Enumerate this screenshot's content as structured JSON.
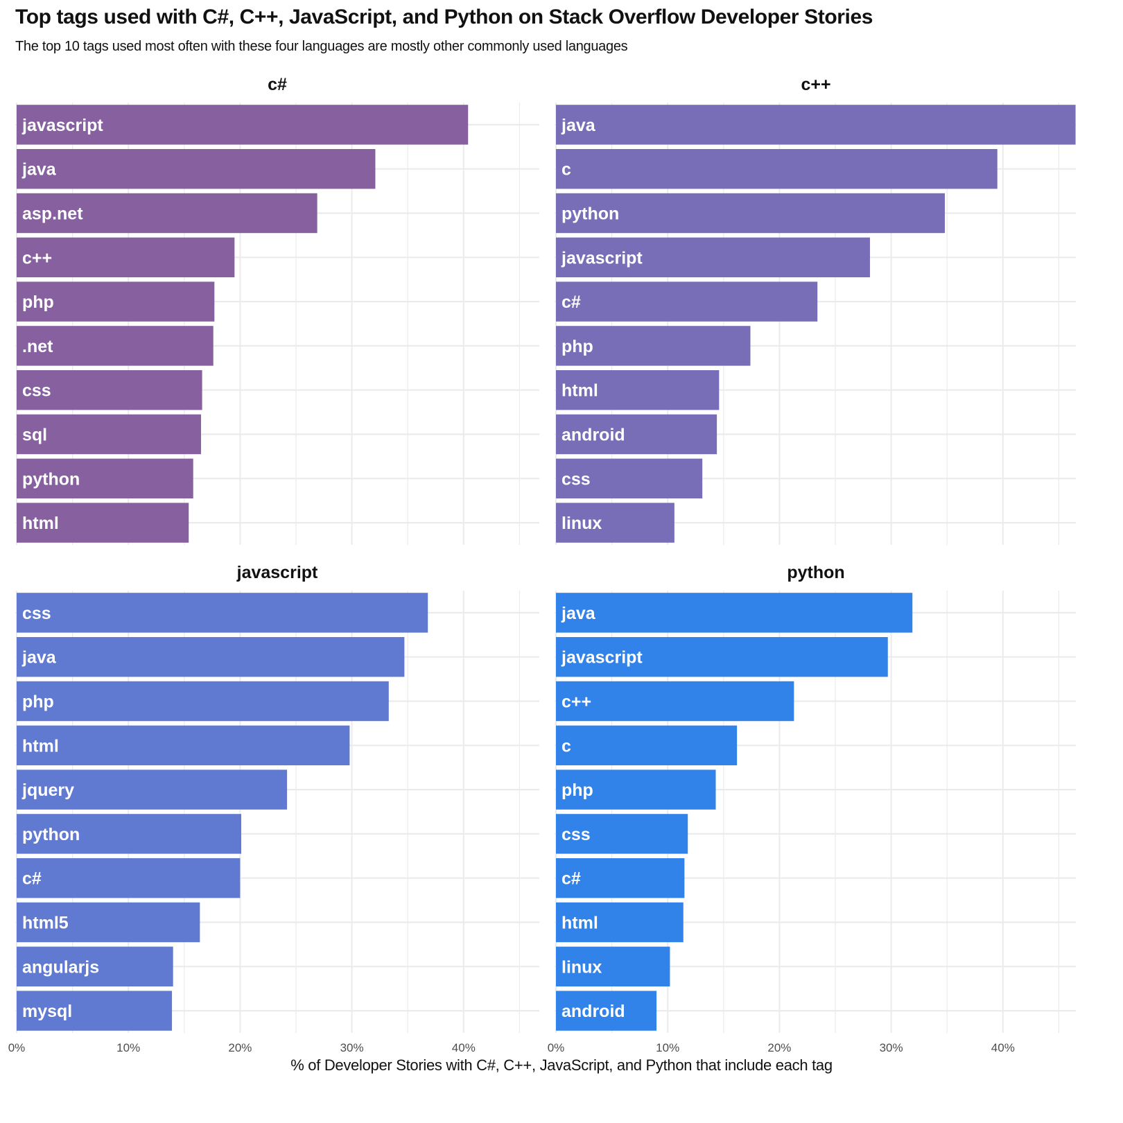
{
  "chart_data": {
    "type": "bar",
    "orientation": "horizontal",
    "title": "Top tags used with C#, C++, JavaScript, and Python on Stack Overflow Developer Stories",
    "subtitle": "The top 10 tags used most often with these four languages are mostly other commonly used languages",
    "xlabel": "% of Developer Stories with C#, C++, JavaScript, and Python that include each tag",
    "ylabel": "",
    "xlim": [
      0,
      46.7
    ],
    "x_ticks": [
      "0%",
      "10%",
      "20%",
      "30%",
      "40%"
    ],
    "x_tick_values": [
      0,
      10,
      20,
      30,
      40
    ],
    "grid": true,
    "legend": "none",
    "panels": [
      {
        "name": "c#",
        "color": "#835B9D",
        "categories": [
          "javascript",
          "java",
          "asp.net",
          "c++",
          "php",
          ".net",
          "css",
          "sql",
          "python",
          "html"
        ],
        "values": [
          40.4,
          32.1,
          26.9,
          19.5,
          17.7,
          17.6,
          16.6,
          16.5,
          15.8,
          15.4
        ]
      },
      {
        "name": "c++",
        "color": "#7469B6",
        "categories": [
          "java",
          "c",
          "python",
          "javascript",
          "c#",
          "php",
          "html",
          "android",
          "css",
          "linux"
        ],
        "values": [
          46.5,
          39.5,
          34.8,
          28.1,
          23.4,
          17.4,
          14.6,
          14.4,
          13.1,
          10.6
        ]
      },
      {
        "name": "javascript",
        "color": "#5B76D0",
        "categories": [
          "css",
          "java",
          "php",
          "html",
          "jquery",
          "python",
          "c#",
          "html5",
          "angularjs",
          "mysql"
        ],
        "values": [
          36.8,
          34.7,
          33.3,
          29.8,
          24.2,
          20.1,
          20.0,
          16.4,
          14.0,
          13.9
        ]
      },
      {
        "name": "python",
        "color": "#2B7FE8",
        "categories": [
          "java",
          "javascript",
          "c++",
          "c",
          "php",
          "css",
          "c#",
          "html",
          "linux",
          "android"
        ],
        "values": [
          31.9,
          29.7,
          21.3,
          16.2,
          14.3,
          11.8,
          11.5,
          11.4,
          10.2,
          9.0
        ]
      }
    ]
  }
}
